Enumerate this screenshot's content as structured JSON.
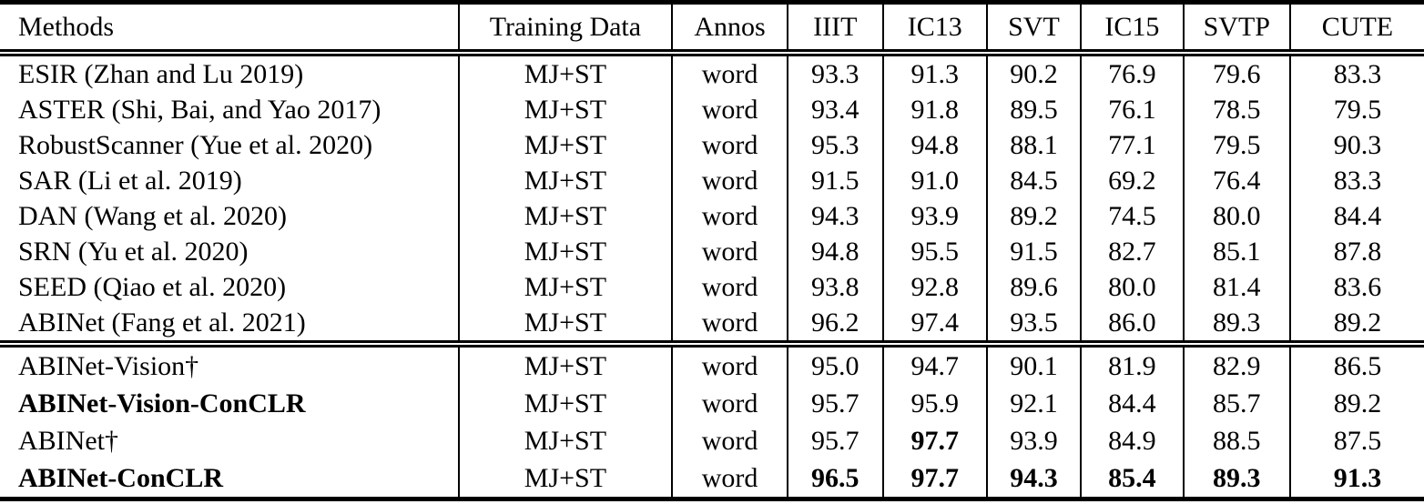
{
  "page": {
    "background_color": "#ffffff",
    "text_color": "#000000"
  },
  "table": {
    "columns": [
      {
        "label": "Methods"
      },
      {
        "label": "Training Data"
      },
      {
        "label": "Annos"
      },
      {
        "label": "IIIT"
      },
      {
        "label": "IC13"
      },
      {
        "label": "SVT"
      },
      {
        "label": "IC15"
      },
      {
        "label": "SVTP"
      },
      {
        "label": "CUTE"
      }
    ],
    "sections": [
      {
        "name": "published-methods",
        "rows": [
          {
            "method": "ESIR (Zhan and Lu 2019)",
            "method_bold": false,
            "training_data": "MJ+ST",
            "annos": "word",
            "scores": [
              "93.3",
              "91.3",
              "90.2",
              "76.9",
              "79.6",
              "83.3"
            ],
            "bold_score_indexes": []
          },
          {
            "method": "ASTER (Shi, Bai, and Yao 2017)",
            "method_bold": false,
            "training_data": "MJ+ST",
            "annos": "word",
            "scores": [
              "93.4",
              "91.8",
              "89.5",
              "76.1",
              "78.5",
              "79.5"
            ],
            "bold_score_indexes": []
          },
          {
            "method": "RobustScanner (Yue et al. 2020)",
            "method_bold": false,
            "training_data": "MJ+ST",
            "annos": "word",
            "scores": [
              "95.3",
              "94.8",
              "88.1",
              "77.1",
              "79.5",
              "90.3"
            ],
            "bold_score_indexes": []
          },
          {
            "method": "SAR (Li et al. 2019)",
            "method_bold": false,
            "training_data": "MJ+ST",
            "annos": "word",
            "scores": [
              "91.5",
              "91.0",
              "84.5",
              "69.2",
              "76.4",
              "83.3"
            ],
            "bold_score_indexes": []
          },
          {
            "method": "DAN (Wang et al. 2020)",
            "method_bold": false,
            "training_data": "MJ+ST",
            "annos": "word",
            "scores": [
              "94.3",
              "93.9",
              "89.2",
              "74.5",
              "80.0",
              "84.4"
            ],
            "bold_score_indexes": []
          },
          {
            "method": "SRN (Yu et al. 2020)",
            "method_bold": false,
            "training_data": "MJ+ST",
            "annos": "word",
            "scores": [
              "94.8",
              "95.5",
              "91.5",
              "82.7",
              "85.1",
              "87.8"
            ],
            "bold_score_indexes": []
          },
          {
            "method": "SEED (Qiao et al. 2020)",
            "method_bold": false,
            "training_data": "MJ+ST",
            "annos": "word",
            "scores": [
              "93.8",
              "92.8",
              "89.6",
              "80.0",
              "81.4",
              "83.6"
            ],
            "bold_score_indexes": []
          },
          {
            "method": "ABINet (Fang et al. 2021)",
            "method_bold": false,
            "training_data": "MJ+ST",
            "annos": "word",
            "scores": [
              "96.2",
              "97.4",
              "93.5",
              "86.0",
              "89.3",
              "89.2"
            ],
            "bold_score_indexes": []
          }
        ]
      },
      {
        "name": "ours-conclr",
        "rows": [
          {
            "method": "ABINet-Vision†",
            "method_bold": false,
            "training_data": "MJ+ST",
            "annos": "word",
            "scores": [
              "95.0",
              "94.7",
              "90.1",
              "81.9",
              "82.9",
              "86.5"
            ],
            "bold_score_indexes": []
          },
          {
            "method": "ABINet-Vision-ConCLR",
            "method_bold": true,
            "training_data": "MJ+ST",
            "annos": "word",
            "scores": [
              "95.7",
              "95.9",
              "92.1",
              "84.4",
              "85.7",
              "89.2"
            ],
            "bold_score_indexes": []
          },
          {
            "method": "ABINet†",
            "method_bold": false,
            "training_data": "MJ+ST",
            "annos": "word",
            "scores": [
              "95.7",
              "97.7",
              "93.9",
              "84.9",
              "88.5",
              "87.5"
            ],
            "bold_score_indexes": [
              1
            ]
          },
          {
            "method": "ABINet-ConCLR",
            "method_bold": true,
            "training_data": "MJ+ST",
            "annos": "word",
            "scores": [
              "96.5",
              "97.7",
              "94.3",
              "85.4",
              "89.3",
              "91.3"
            ],
            "bold_score_indexes": [
              0,
              1,
              2,
              3,
              4,
              5
            ]
          }
        ]
      }
    ]
  }
}
